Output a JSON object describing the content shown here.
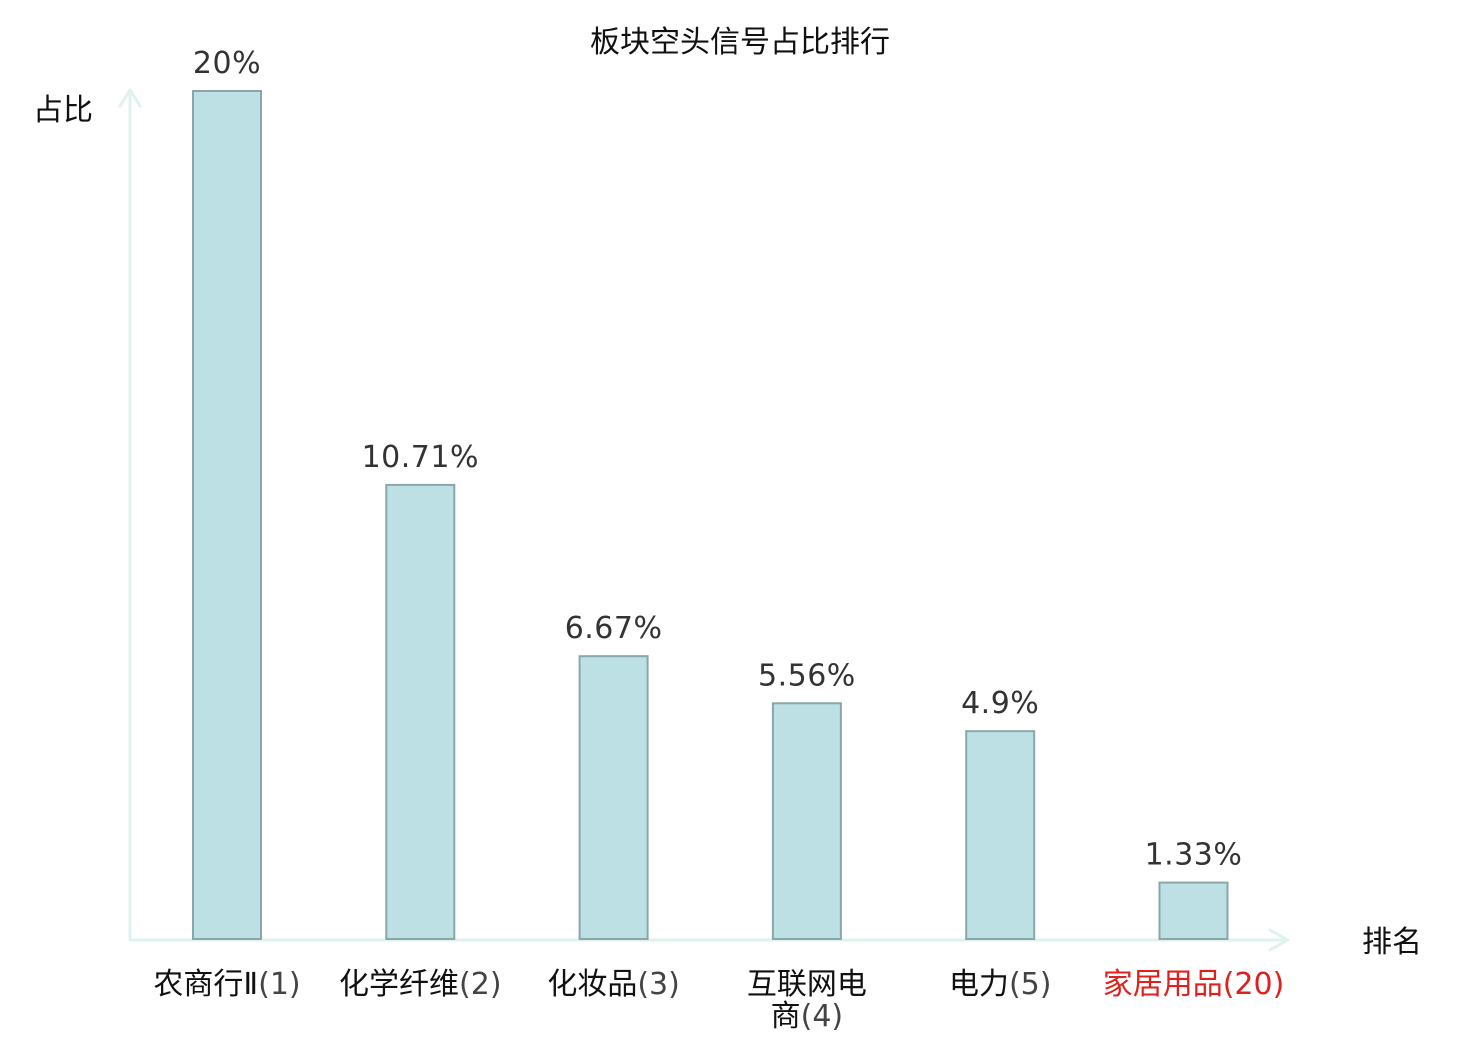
{
  "chart_data": {
    "type": "bar",
    "title": "板块空头信号占比排行",
    "ylabel": "占比",
    "xlabel": "排名",
    "categories": [
      {
        "name": "农商行Ⅱ",
        "rank": "(1)"
      },
      {
        "name": "化学纤维",
        "rank": "(2)"
      },
      {
        "name": "化妆品",
        "rank": "(3)"
      },
      {
        "name": "互联网电商",
        "rank": "(4)"
      },
      {
        "name": "电力",
        "rank": "(5)"
      },
      {
        "name": "家居用品",
        "rank": "(20)"
      }
    ],
    "values": [
      20,
      10.71,
      6.67,
      5.56,
      4.9,
      1.33
    ],
    "value_labels": [
      "20%",
      "10.71%",
      "6.67%",
      "5.56%",
      "4.9%",
      "1.33%"
    ],
    "ylim": [
      0,
      20
    ],
    "grid": false,
    "highlight_index": 5,
    "colors": {
      "bar_fill": "#bce0e3",
      "bar_stroke": "#8aa6a8",
      "axis": "#dff2ef",
      "category_text": "#111111",
      "rank_text": "#444444",
      "highlight_text": "#e0201c"
    }
  }
}
